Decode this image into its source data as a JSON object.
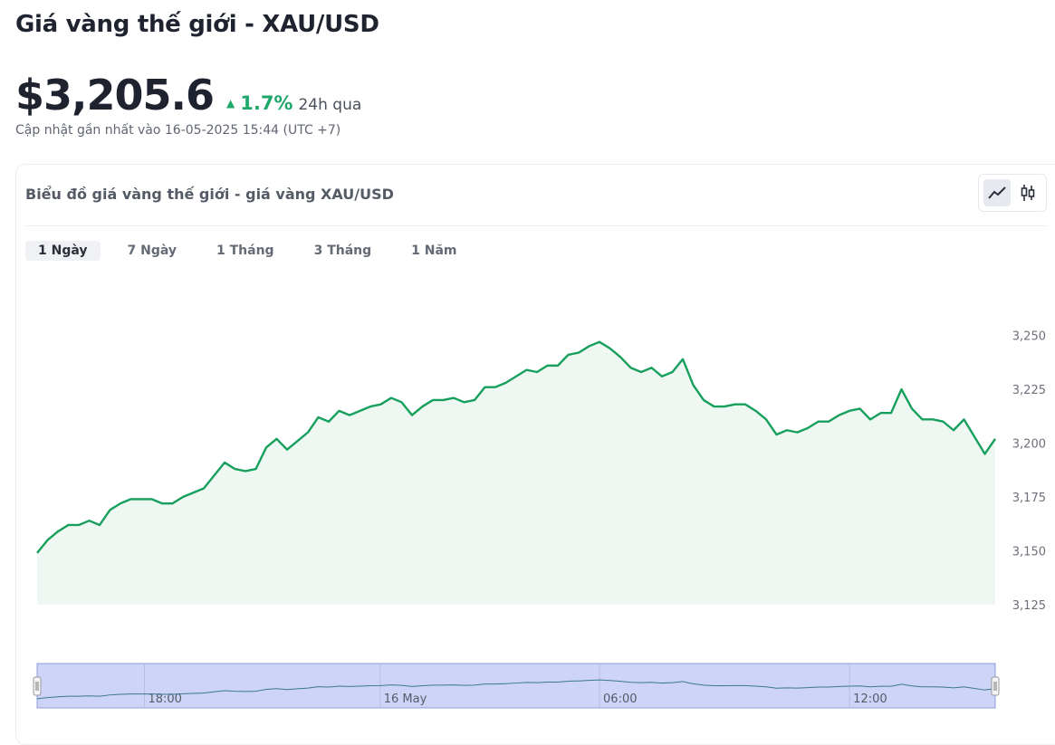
{
  "header": {
    "title": "Giá vàng thế giới - XAU/USD",
    "price": "$3,205.6",
    "change_pct": "1.7%",
    "change_period": "24h qua",
    "updated": "Cập nhật gần nhất vào 16-05-2025 15:44 (UTC +7)"
  },
  "card": {
    "title": "Biểu đồ giá vàng thế giới - giá vàng XAU/USD",
    "toggle": {
      "active": "line-chart-icon",
      "icons": [
        "line-chart-icon",
        "candlestick-icon"
      ]
    }
  },
  "tabs": [
    {
      "label": "1 Ngày",
      "active": true
    },
    {
      "label": "7 Ngày",
      "active": false
    },
    {
      "label": "1 Tháng",
      "active": false
    },
    {
      "label": "3 Tháng",
      "active": false
    },
    {
      "label": "1 Năm",
      "active": false
    }
  ],
  "colors": {
    "line": "#17a05d",
    "area": "#eef7f2",
    "up": "#1fa86a",
    "navigator_fill": "#cdd4f7",
    "navigator_border": "#8f9bd8"
  },
  "chart_data": {
    "type": "area",
    "title": "",
    "xlabel": "",
    "ylabel": "",
    "ylim": [
      3125,
      3262
    ],
    "y_ticks": [
      3250,
      3225,
      3200,
      3175,
      3150,
      3125
    ],
    "y_tick_labels": [
      "3,250",
      "3,225",
      "3,200",
      "3,175",
      "3,150",
      "3,125"
    ],
    "series": [
      {
        "values": [
          3149,
          3155,
          3159,
          3162,
          3162,
          3164,
          3162,
          3169,
          3172,
          3174,
          3174,
          3174,
          3172,
          3172,
          3175,
          3177,
          3179,
          3185,
          3191,
          3188,
          3187,
          3188,
          3198,
          3202,
          3197,
          3201,
          3205,
          3212,
          3210,
          3215,
          3213,
          3215,
          3217,
          3218,
          3221,
          3219,
          3213,
          3217,
          3220,
          3220,
          3221,
          3219,
          3220,
          3226,
          3226,
          3228,
          3231,
          3234,
          3233,
          3236,
          3236,
          3241,
          3242,
          3245,
          3247,
          3244,
          3240,
          3235,
          3233,
          3235,
          3231,
          3233,
          3239,
          3227,
          3220,
          3217,
          3217,
          3218,
          3218,
          3215,
          3211,
          3204,
          3206,
          3205,
          3207,
          3210,
          3210,
          3213,
          3215,
          3216,
          3211,
          3214,
          3214,
          3225,
          3216,
          3211,
          3211,
          3210,
          3206,
          3211,
          3203,
          3195,
          3202
        ]
      }
    ],
    "x_range": [
      "15:44",
      "15:44"
    ],
    "navigator": {
      "x_ticks": [
        "18:00",
        "16 May",
        "06:00",
        "12:00"
      ],
      "x_tick_fractions": [
        0.112,
        0.358,
        0.587,
        0.848
      ]
    }
  }
}
